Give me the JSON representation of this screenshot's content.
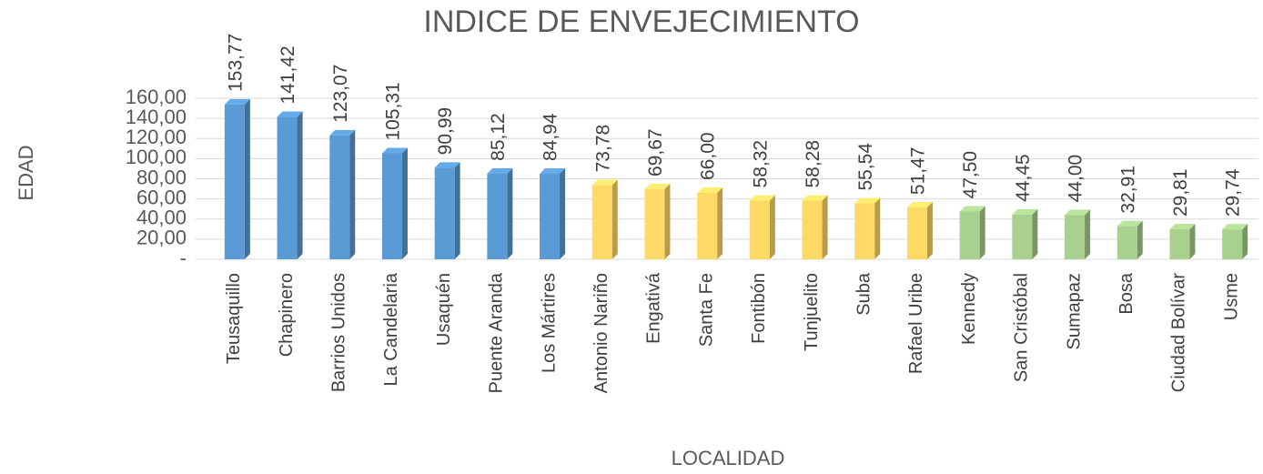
{
  "chart_data": {
    "type": "bar",
    "title": "INDICE DE ENVEJECIMIENTO",
    "x_label": "LOCALIDAD",
    "y_label": "EDAD",
    "categories": [
      "Teusaquillo",
      "Chapinero",
      "Barrios Unidos",
      "La Candelaria",
      "Usaquén",
      "Puente Aranda",
      "Los Mártires",
      "Antonio Nariño",
      "Engativá",
      "Santa Fe",
      "Fontibón",
      "Tunjuelito",
      "Suba",
      "Rafael Uribe",
      "Kennedy",
      "San Cristóbal",
      "Sumapaz",
      "Bosa",
      "Ciudad Bolívar",
      "Usme"
    ],
    "values": [
      153.77,
      141.42,
      123.07,
      105.31,
      90.99,
      85.12,
      84.94,
      73.78,
      69.67,
      66.0,
      58.32,
      58.28,
      55.54,
      51.47,
      47.5,
      44.45,
      44.0,
      32.91,
      29.81,
      29.74
    ],
    "value_labels": [
      "153,77",
      "141,42",
      "123,07",
      "105,31",
      "90,99",
      "85,12",
      "84,94",
      "73,78",
      "69,67",
      "66,00",
      "58,32",
      "58,28",
      "55,54",
      "51,47",
      "47,50",
      "44,45",
      "44,00",
      "32,91",
      "29,81",
      "29,74"
    ],
    "colors": [
      "#5b9bd5",
      "#5b9bd5",
      "#5b9bd5",
      "#5b9bd5",
      "#5b9bd5",
      "#5b9bd5",
      "#5b9bd5",
      "#ffd966",
      "#ffd966",
      "#ffd966",
      "#ffd966",
      "#ffd966",
      "#ffd966",
      "#ffd966",
      "#a9d18e",
      "#a9d18e",
      "#a9d18e",
      "#a9d18e",
      "#a9d18e",
      "#a9d18e"
    ],
    "ylim": [
      0,
      160
    ],
    "yticks": [
      {
        "value": 0,
        "label": "-"
      },
      {
        "value": 20,
        "label": "20,00"
      },
      {
        "value": 40,
        "label": "40,00"
      },
      {
        "value": 60,
        "label": "60,00"
      },
      {
        "value": 80,
        "label": "80,00"
      },
      {
        "value": 100,
        "label": "100,00"
      },
      {
        "value": 120,
        "label": "120,00"
      },
      {
        "value": 140,
        "label": "140,00"
      },
      {
        "value": 160,
        "label": "160,00"
      }
    ],
    "grid": true
  }
}
